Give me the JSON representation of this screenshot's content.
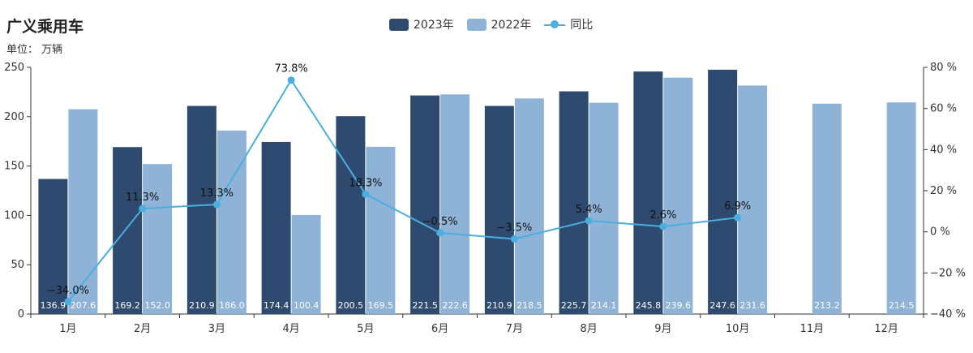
{
  "title": "广义乘用车",
  "unit_label": "单位：  万辆",
  "legend": {
    "items": [
      {
        "label": "2023年",
        "color": "#2e4a6e"
      },
      {
        "label": "2022年",
        "color": "#8fb3d6"
      },
      {
        "label": "同比",
        "color": "#4aaee0"
      }
    ]
  },
  "chart_data": {
    "type": "bar",
    "categories": [
      "1月",
      "2月",
      "3月",
      "4月",
      "5月",
      "6月",
      "7月",
      "8月",
      "9月",
      "10月",
      "11月",
      "12月"
    ],
    "series": [
      {
        "name": "2023年",
        "type": "bar",
        "color": "#2e4a6e",
        "values": [
          136.9,
          169.2,
          210.9,
          174.4,
          200.5,
          221.5,
          210.9,
          225.7,
          245.8,
          247.6,
          null,
          null
        ],
        "labels": [
          "136.9",
          "169.2",
          "210.9",
          "174.4",
          "200.5",
          "221.5",
          "210.9",
          "225.7",
          "245.8",
          "247.6",
          null,
          null
        ]
      },
      {
        "name": "2022年",
        "type": "bar",
        "color": "#8fb3d6",
        "values": [
          207.6,
          152.0,
          186.0,
          100.4,
          169.5,
          222.6,
          218.5,
          214.1,
          239.6,
          231.6,
          213.2,
          214.5
        ],
        "labels": [
          "207.6",
          "152.0",
          "186.0",
          "100.4",
          "169.5",
          "222.6",
          "218.5",
          "214.1",
          "239.6",
          "231.6",
          "213.2",
          "214.5"
        ]
      },
      {
        "name": "同比",
        "type": "line",
        "color": "#4aaee0",
        "axis": "right",
        "values": [
          -34.0,
          11.3,
          13.3,
          73.8,
          18.3,
          -0.5,
          -3.5,
          5.4,
          2.6,
          6.9,
          null,
          null
        ],
        "labels": [
          "−34.0%",
          "11.3%",
          "13.3%",
          "73.8%",
          "18.3%",
          "−0.5%",
          "−3.5%",
          "5.4%",
          "2.6%",
          "6.9%",
          null,
          null
        ]
      }
    ],
    "y_left": {
      "min": 0,
      "max": 250,
      "ticks": [
        "0",
        "50",
        "100",
        "150",
        "200",
        "250"
      ],
      "tick_values": [
        0,
        50,
        100,
        150,
        200,
        250
      ]
    },
    "y_right": {
      "min": -40,
      "max": 80,
      "ticks": [
        "−40 %",
        "−20 %",
        "0 %",
        "20 %",
        "40 %",
        "60 %",
        "80 %"
      ],
      "tick_values": [
        -40,
        -20,
        0,
        20,
        40,
        60,
        80
      ]
    },
    "grid": false,
    "legend_position": "top-center"
  }
}
